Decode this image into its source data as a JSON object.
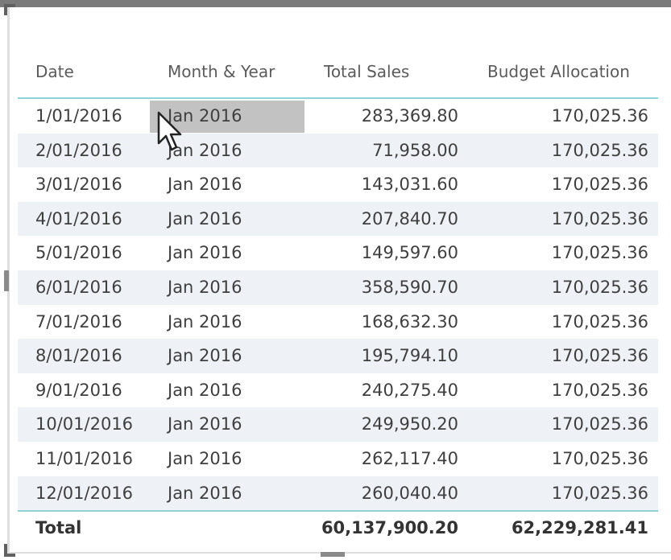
{
  "table": {
    "headers": {
      "date": "Date",
      "month_year": "Month & Year",
      "total_sales": "Total Sales",
      "budget_allocation": "Budget Allocation"
    },
    "rows": [
      {
        "date": "1/01/2016",
        "month_year": "Jan 2016",
        "total_sales": "283,369.80",
        "budget_allocation": "170,025.36"
      },
      {
        "date": "2/01/2016",
        "month_year": "Jan 2016",
        "total_sales": "71,958.00",
        "budget_allocation": "170,025.36"
      },
      {
        "date": "3/01/2016",
        "month_year": "Jan 2016",
        "total_sales": "143,031.60",
        "budget_allocation": "170,025.36"
      },
      {
        "date": "4/01/2016",
        "month_year": "Jan 2016",
        "total_sales": "207,840.70",
        "budget_allocation": "170,025.36"
      },
      {
        "date": "5/01/2016",
        "month_year": "Jan 2016",
        "total_sales": "149,597.60",
        "budget_allocation": "170,025.36"
      },
      {
        "date": "6/01/2016",
        "month_year": "Jan 2016",
        "total_sales": "358,590.70",
        "budget_allocation": "170,025.36"
      },
      {
        "date": "7/01/2016",
        "month_year": "Jan 2016",
        "total_sales": "168,632.30",
        "budget_allocation": "170,025.36"
      },
      {
        "date": "8/01/2016",
        "month_year": "Jan 2016",
        "total_sales": "195,794.10",
        "budget_allocation": "170,025.36"
      },
      {
        "date": "9/01/2016",
        "month_year": "Jan 2016",
        "total_sales": "240,275.40",
        "budget_allocation": "170,025.36"
      },
      {
        "date": "10/01/2016",
        "month_year": "Jan 2016",
        "total_sales": "249,950.20",
        "budget_allocation": "170,025.36"
      },
      {
        "date": "11/01/2016",
        "month_year": "Jan 2016",
        "total_sales": "262,117.40",
        "budget_allocation": "170,025.36"
      },
      {
        "date": "12/01/2016",
        "month_year": "Jan 2016",
        "total_sales": "260,040.40",
        "budget_allocation": "170,025.36"
      }
    ],
    "total": {
      "label": "Total",
      "total_sales": "60,137,900.20",
      "budget_allocation": "62,229,281.41"
    },
    "selected_cell": {
      "row": 0,
      "column": "month_year"
    }
  },
  "colors": {
    "accent_line": "#8fd3d6",
    "alt_row": "#eef1f6",
    "selected_cell": "#c2c2c2"
  },
  "icons": {
    "cursor": "mouse-pointer-icon"
  }
}
